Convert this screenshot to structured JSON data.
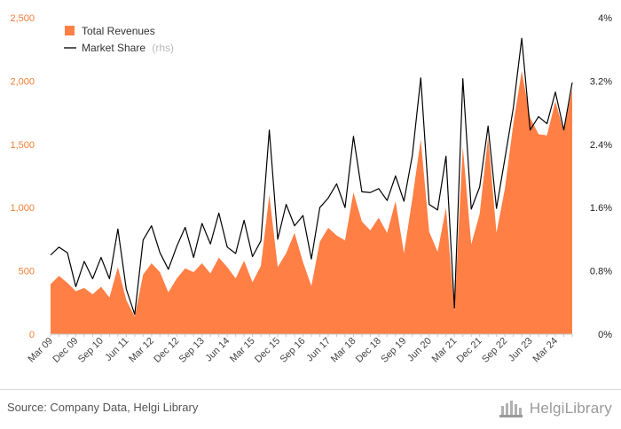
{
  "chart_data": {
    "type": "area",
    "x": [
      "Mar 09",
      "Jun 09",
      "Sep 09",
      "Dec 09",
      "Mar 10",
      "Jun 10",
      "Sep 10",
      "Dec 10",
      "Mar 11",
      "Jun 11",
      "Sep 11",
      "Dec 11",
      "Mar 12",
      "Jun 12",
      "Sep 12",
      "Dec 12",
      "Mar 13",
      "Jun 13",
      "Sep 13",
      "Dec 13",
      "Mar 14",
      "Jun 14",
      "Sep 14",
      "Dec 14",
      "Mar 15",
      "Jun 15",
      "Sep 15",
      "Dec 15",
      "Mar 16",
      "Jun 16",
      "Sep 16",
      "Dec 16",
      "Mar 17",
      "Jun 17",
      "Sep 17",
      "Dec 17",
      "Mar 18",
      "Jun 18",
      "Sep 18",
      "Dec 18",
      "Mar 19",
      "Jun 19",
      "Sep 19",
      "Dec 19",
      "Mar 20",
      "Jun 20",
      "Sep 20",
      "Dec 20",
      "Mar 21",
      "Jun 21",
      "Sep 21",
      "Dec 21",
      "Mar 22",
      "Jun 22",
      "Sep 22",
      "Dec 22",
      "Mar 23",
      "Jun 23",
      "Sep 23",
      "Dec 23",
      "Mar 24",
      "Jun 24",
      "Sep 24"
    ],
    "xtick_labels": [
      "Mar 09",
      "Dec 09",
      "Sep 10",
      "Jun 11",
      "Mar 12",
      "Dec 12",
      "Sep 13",
      "Jun 14",
      "Mar 15",
      "Dec 15",
      "Sep 16",
      "Jun 17",
      "Mar 18",
      "Dec 18",
      "Sep 19",
      "Jun 20",
      "Mar 21",
      "Dec 21",
      "Sep 22",
      "Jun 23",
      "Mar 24"
    ],
    "series": [
      {
        "name": "Total Revenues",
        "axis": "left",
        "style": "area",
        "color": "#ff7f45",
        "values": [
          395,
          460,
          405,
          340,
          365,
          315,
          375,
          290,
          530,
          270,
          140,
          470,
          560,
          490,
          330,
          440,
          520,
          490,
          560,
          480,
          605,
          530,
          440,
          580,
          410,
          540,
          1100,
          530,
          640,
          800,
          570,
          380,
          730,
          840,
          780,
          740,
          1120,
          890,
          820,
          920,
          800,
          1050,
          640,
          1070,
          1540,
          810,
          650,
          1000,
          180,
          1480,
          710,
          950,
          1560,
          800,
          1150,
          1660,
          2080,
          1710,
          1580,
          1570,
          1840,
          1600,
          1940
        ]
      },
      {
        "name": "Market Share",
        "name_suffix": "(rhs)",
        "axis": "right",
        "style": "line",
        "color": "#000000",
        "values": [
          1.0,
          1.1,
          1.03,
          0.6,
          0.92,
          0.7,
          0.97,
          0.7,
          1.33,
          0.57,
          0.25,
          1.19,
          1.37,
          1.03,
          0.82,
          1.11,
          1.35,
          0.97,
          1.4,
          1.14,
          1.53,
          1.1,
          1.02,
          1.44,
          0.98,
          1.18,
          2.58,
          1.2,
          1.64,
          1.37,
          1.5,
          0.95,
          1.6,
          1.72,
          1.9,
          1.6,
          2.5,
          1.8,
          1.79,
          1.84,
          1.69,
          2.0,
          1.68,
          2.26,
          3.24,
          1.64,
          1.57,
          2.25,
          0.33,
          3.23,
          1.58,
          1.86,
          2.63,
          1.59,
          2.22,
          2.86,
          3.74,
          2.58,
          2.75,
          2.66,
          3.06,
          2.58,
          3.18
        ]
      }
    ],
    "ylim_left": [
      0,
      2500
    ],
    "yticks_left": [
      "0",
      "500",
      "1,000",
      "1,500",
      "2,000",
      "2,500"
    ],
    "ylim_right": [
      0,
      4.0
    ],
    "yticks_right": [
      "0%",
      "0.8%",
      "1.6%",
      "2.4%",
      "3.2%",
      "4%"
    ],
    "grid": false,
    "legend_position": "top-left"
  },
  "footer": {
    "source": "Source: Company Data, Helgi Library",
    "logo_text": "HelgiLibrary"
  }
}
